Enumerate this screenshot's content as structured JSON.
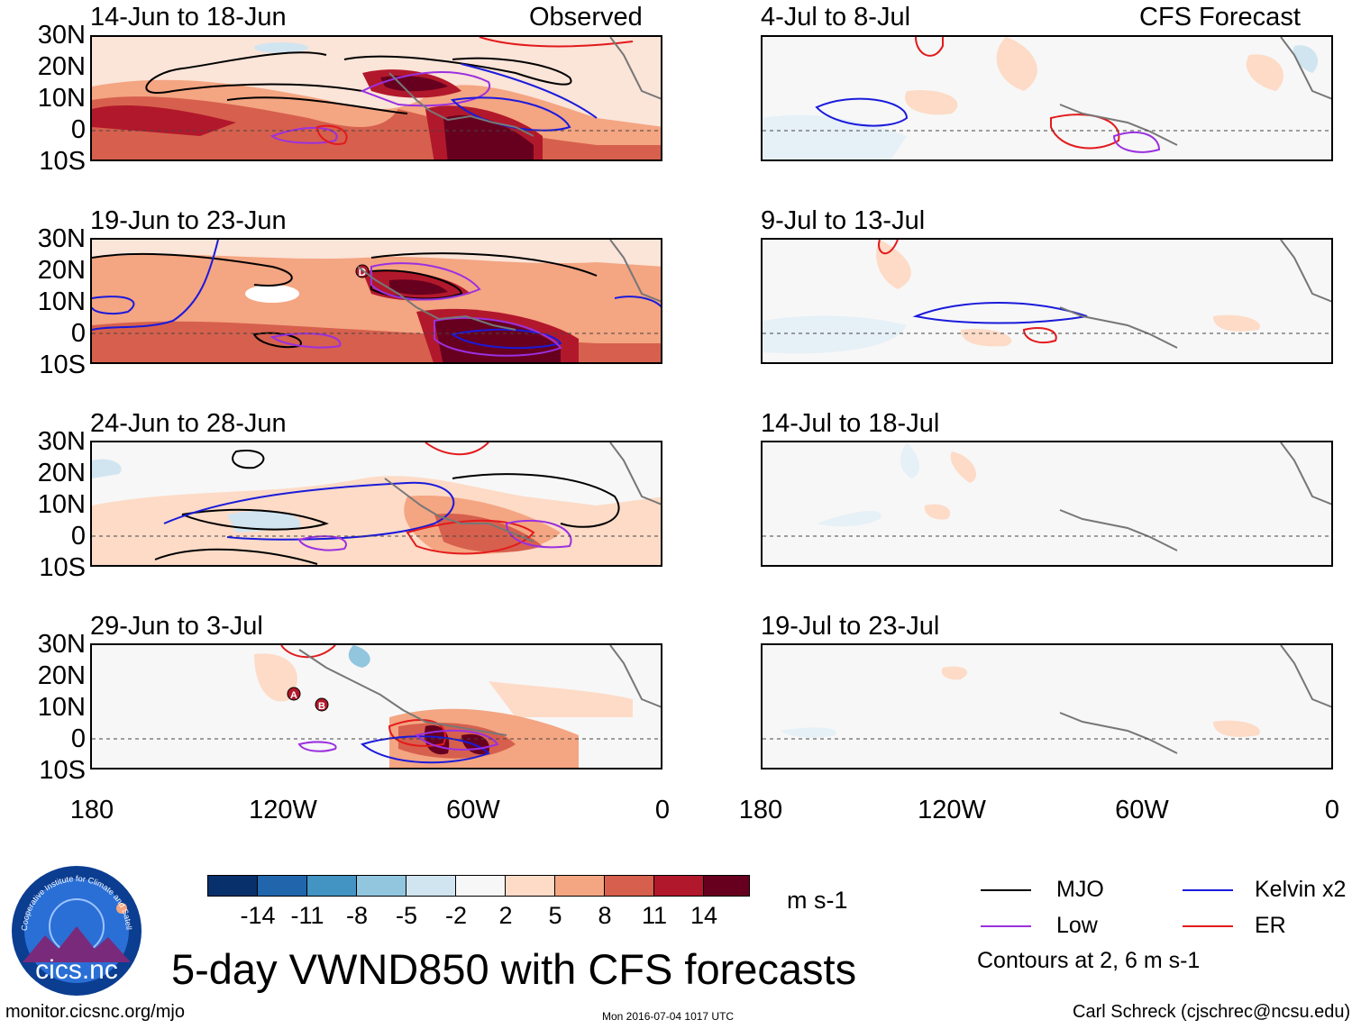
{
  "panels": {
    "left": [
      {
        "title": "14-Jun to 18-Jun",
        "tag": "Observed"
      },
      {
        "title": "19-Jun to 23-Jun",
        "tag": ""
      },
      {
        "title": "24-Jun to 28-Jun",
        "tag": ""
      },
      {
        "title": "29-Jun to 3-Jul",
        "tag": ""
      }
    ],
    "right": [
      {
        "title": "4-Jul to 8-Jul",
        "tag": "CFS Forecast"
      },
      {
        "title": "9-Jul to 13-Jul",
        "tag": ""
      },
      {
        "title": "14-Jul to 18-Jul",
        "tag": ""
      },
      {
        "title": "19-Jul to 23-Jul",
        "tag": ""
      }
    ]
  },
  "axes": {
    "lat_labels": [
      "30N",
      "20N",
      "10N",
      "0",
      "10S"
    ],
    "lon_labels": [
      "180",
      "120W",
      "60W",
      "0"
    ]
  },
  "markers": {
    "d": "D",
    "a": "A",
    "b": "B"
  },
  "colorbar": {
    "colors": [
      "#08306b",
      "#2166ac",
      "#4393c3",
      "#92c5de",
      "#d1e5f0",
      "#f7f7f7",
      "#fddbc7",
      "#f4a582",
      "#d6604d",
      "#b2182b",
      "#67001f"
    ],
    "labels": [
      "-14",
      "-11",
      "-8",
      "-5",
      "-2",
      "2",
      "5",
      "8",
      "11",
      "14"
    ],
    "units": "m s-1"
  },
  "legend": {
    "mjo": {
      "label": "MJO",
      "color": "#000000"
    },
    "kelvin": {
      "label": "Kelvin x2",
      "color": "#1a1adb"
    },
    "low": {
      "label": "Low",
      "color": "#9b30e0"
    },
    "er": {
      "label": "ER",
      "color": "#e31a1c"
    },
    "note": "Contours at 2, 6 m s-1"
  },
  "logo": {
    "text": "cics.nc",
    "ring_text": "Cooperative Institute for Climate and Satellites"
  },
  "title": "5-day VWND850 with CFS forecasts",
  "footer": {
    "url": "monitor.cicsnc.org/mjo",
    "timestamp": "Mon 2016-07-04 1017 UTC",
    "credit": "Carl Schreck (cjschrec@ncsu.edu)"
  }
}
